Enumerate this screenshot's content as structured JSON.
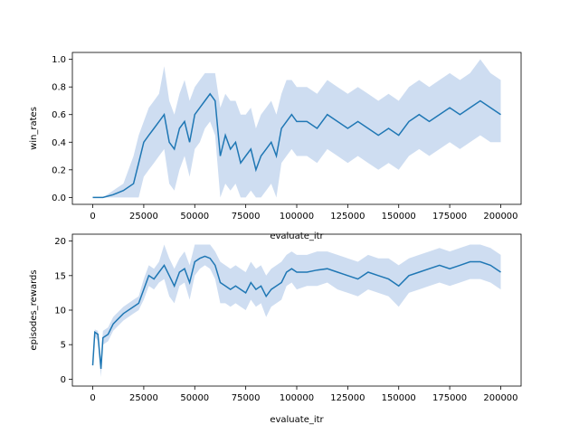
{
  "chart_data": [
    {
      "type": "line",
      "xlabel": "evaluate_itr",
      "ylabel": "win_rates",
      "xlim": [
        -10000,
        210000
      ],
      "ylim": [
        -0.05,
        1.05
      ],
      "xticks": [
        0,
        25000,
        50000,
        75000,
        100000,
        125000,
        150000,
        175000,
        200000
      ],
      "xtick_labels": [
        "0",
        "25000",
        "50000",
        "75000",
        "100000",
        "125000",
        "150000",
        "175000",
        "200000"
      ],
      "yticks": [
        0.0,
        0.2,
        0.4,
        0.6,
        0.8,
        1.0
      ],
      "ytick_labels": [
        "0.0",
        "0.2",
        "0.4",
        "0.6",
        "0.8",
        "1.0"
      ],
      "grid": false,
      "color": "#1f77b4",
      "series": [
        {
          "x": [
            0,
            5000,
            10000,
            15000,
            20000,
            22500,
            25000,
            27500,
            30000,
            32500,
            35000,
            37500,
            40000,
            42500,
            45000,
            47500,
            50000,
            52500,
            55000,
            57500,
            60000,
            62500,
            65000,
            67500,
            70000,
            72500,
            75000,
            77500,
            80000,
            82500,
            85000,
            87500,
            90000,
            92500,
            95000,
            97500,
            100000,
            105000,
            110000,
            115000,
            120000,
            125000,
            130000,
            135000,
            140000,
            145000,
            150000,
            155000,
            160000,
            165000,
            170000,
            175000,
            180000,
            185000,
            190000,
            195000,
            200000
          ],
          "y": [
            0.0,
            0.0,
            0.02,
            0.05,
            0.1,
            0.25,
            0.4,
            0.45,
            0.5,
            0.55,
            0.6,
            0.4,
            0.35,
            0.5,
            0.55,
            0.4,
            0.6,
            0.65,
            0.7,
            0.75,
            0.7,
            0.3,
            0.45,
            0.35,
            0.4,
            0.25,
            0.3,
            0.35,
            0.2,
            0.3,
            0.35,
            0.4,
            0.3,
            0.5,
            0.55,
            0.6,
            0.55,
            0.55,
            0.5,
            0.6,
            0.55,
            0.5,
            0.55,
            0.5,
            0.45,
            0.5,
            0.45,
            0.55,
            0.6,
            0.55,
            0.6,
            0.65,
            0.6,
            0.65,
            0.7,
            0.65,
            0.6
          ],
          "min": [
            0.0,
            0.0,
            0.0,
            0.0,
            0.0,
            0.0,
            0.15,
            0.2,
            0.25,
            0.3,
            0.35,
            0.1,
            0.05,
            0.2,
            0.3,
            0.15,
            0.35,
            0.4,
            0.5,
            0.55,
            0.45,
            0.0,
            0.1,
            0.05,
            0.1,
            0.0,
            0.0,
            0.05,
            0.0,
            0.0,
            0.05,
            0.1,
            0.0,
            0.25,
            0.3,
            0.35,
            0.3,
            0.3,
            0.25,
            0.35,
            0.3,
            0.25,
            0.3,
            0.25,
            0.2,
            0.25,
            0.2,
            0.3,
            0.35,
            0.3,
            0.35,
            0.4,
            0.35,
            0.4,
            0.45,
            0.4,
            0.4
          ],
          "max": [
            0.0,
            0.0,
            0.05,
            0.1,
            0.3,
            0.45,
            0.55,
            0.65,
            0.7,
            0.75,
            0.95,
            0.7,
            0.6,
            0.75,
            0.85,
            0.7,
            0.8,
            0.85,
            0.9,
            0.9,
            0.9,
            0.65,
            0.75,
            0.7,
            0.7,
            0.6,
            0.6,
            0.65,
            0.5,
            0.6,
            0.65,
            0.7,
            0.6,
            0.75,
            0.85,
            0.85,
            0.8,
            0.8,
            0.75,
            0.85,
            0.8,
            0.75,
            0.8,
            0.75,
            0.7,
            0.75,
            0.7,
            0.8,
            0.85,
            0.8,
            0.85,
            0.9,
            0.85,
            0.9,
            1.0,
            0.9,
            0.85
          ]
        }
      ]
    },
    {
      "type": "line",
      "xlabel": "evaluate_itr",
      "ylabel": "episodes_rewards",
      "xlim": [
        -10000,
        210000
      ],
      "ylim": [
        -1,
        21
      ],
      "xticks": [
        0,
        25000,
        50000,
        75000,
        100000,
        125000,
        150000,
        175000,
        200000
      ],
      "xtick_labels": [
        "0",
        "25000",
        "50000",
        "75000",
        "100000",
        "125000",
        "150000",
        "175000",
        "200000"
      ],
      "yticks": [
        0,
        5,
        10,
        15,
        20
      ],
      "ytick_labels": [
        "0",
        "5",
        "10",
        "15",
        "20"
      ],
      "grid": false,
      "color": "#1f77b4",
      "band_color": "#aec7e8",
      "series": [
        {
          "x": [
            0,
            1000,
            2500,
            4000,
            5000,
            7500,
            10000,
            15000,
            20000,
            22500,
            25000,
            27500,
            30000,
            32500,
            35000,
            37500,
            40000,
            42500,
            45000,
            47500,
            50000,
            52500,
            55000,
            57500,
            60000,
            62500,
            65000,
            67500,
            70000,
            72500,
            75000,
            77500,
            80000,
            82500,
            85000,
            87500,
            90000,
            92500,
            95000,
            97500,
            100000,
            105000,
            110000,
            115000,
            120000,
            125000,
            130000,
            135000,
            140000,
            145000,
            150000,
            155000,
            160000,
            165000,
            170000,
            175000,
            180000,
            185000,
            190000,
            195000,
            200000
          ],
          "y": [
            2,
            6.8,
            6.5,
            1.5,
            6,
            6.5,
            8,
            9.5,
            10.5,
            11,
            13,
            15,
            14.5,
            15.5,
            16.5,
            15,
            13.5,
            15.5,
            16,
            14,
            17,
            17.5,
            17.8,
            17.5,
            16.5,
            14,
            13.5,
            13,
            13.5,
            13,
            12.5,
            14,
            13,
            13.5,
            12,
            13,
            13.5,
            14,
            15.5,
            16,
            15.5,
            15.5,
            15.8,
            16,
            15.5,
            15,
            14.5,
            15.5,
            15,
            14.5,
            13.5,
            15,
            15.5,
            16,
            16.5,
            16,
            16.5,
            17,
            17,
            16.5,
            15.5
          ],
          "min": [
            1.5,
            6.2,
            5.5,
            0.3,
            5,
            5.5,
            7,
            8.5,
            9.5,
            10,
            11.5,
            13.5,
            13,
            14,
            14.5,
            12,
            11,
            13.5,
            14,
            11.5,
            15,
            16,
            16.5,
            16,
            14.5,
            11,
            11,
            10.5,
            11,
            10.5,
            10,
            11.5,
            10.5,
            11,
            9,
            10.5,
            11,
            11.5,
            13.5,
            14,
            13,
            13.5,
            13.5,
            14,
            13,
            12.5,
            12,
            13,
            12.5,
            12,
            10.5,
            12.5,
            13,
            13.5,
            14,
            13.5,
            14,
            14.5,
            14.5,
            14,
            13
          ],
          "max": [
            2.5,
            7.2,
            7,
            3,
            7,
            7.5,
            9,
            10.5,
            11.5,
            12,
            14.5,
            16.5,
            16,
            17,
            19.5,
            17.5,
            16,
            17.5,
            18.5,
            16.5,
            19.5,
            19.5,
            19.5,
            19.5,
            18.5,
            17,
            16.5,
            16,
            16.5,
            16,
            15.5,
            17,
            16,
            16.5,
            15,
            16,
            16.5,
            17,
            18,
            18.5,
            18,
            18,
            18.5,
            18.5,
            18,
            17.5,
            17,
            18,
            17.5,
            17.5,
            16.5,
            17.5,
            18,
            18.5,
            19,
            18.5,
            19,
            19.5,
            19.5,
            19,
            18
          ]
        }
      ]
    }
  ]
}
